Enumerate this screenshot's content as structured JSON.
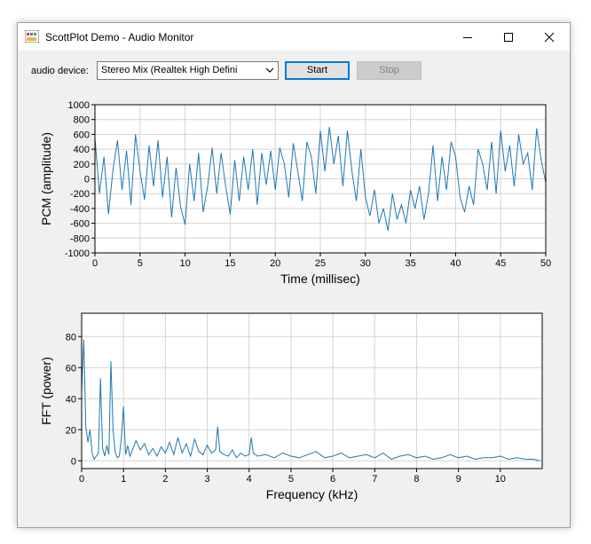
{
  "window": {
    "title": "ScottPlot Demo - Audio Monitor",
    "icons": {
      "app": "scottplot-app-icon",
      "minimize": "minimize-icon",
      "maximize": "maximize-icon",
      "close": "close-icon"
    }
  },
  "toolbar": {
    "device_label": "audio device:",
    "device_value": "Stereo Mix (Realtek High Defini",
    "start_label": "Start",
    "stop_label": "Stop"
  },
  "colors": {
    "series": "#1f77b4",
    "grid": "#d4d4d4",
    "start_border": "#0078d7"
  },
  "chart_data": [
    {
      "type": "line",
      "name": "pcm",
      "xlabel": "Time (millisec)",
      "ylabel": "PCM (amplitude)",
      "xlim": [
        0,
        50
      ],
      "ylim": [
        -1000,
        1000
      ],
      "x_ticks": [
        0,
        5,
        10,
        15,
        20,
        25,
        30,
        35,
        40,
        45,
        50
      ],
      "y_ticks": [
        -1000,
        -800,
        -600,
        -400,
        -200,
        0,
        200,
        400,
        600,
        800,
        1000
      ],
      "grid": true,
      "series": [
        {
          "x": [
            0,
            0.5,
            1,
            1.5,
            2,
            2.5,
            3,
            3.5,
            4,
            4.5,
            5,
            5.5,
            6,
            6.5,
            7,
            7.5,
            8,
            8.5,
            9,
            9.5,
            10,
            10.5,
            11,
            11.5,
            12,
            12.5,
            13,
            13.5,
            14,
            14.5,
            15,
            15.5,
            16,
            16.5,
            17,
            17.5,
            18,
            18.5,
            19,
            19.5,
            20,
            20.5,
            21,
            21.5,
            22,
            22.5,
            23,
            23.5,
            24,
            24.5,
            25,
            25.5,
            26,
            26.5,
            27,
            27.5,
            28,
            28.5,
            29,
            29.5,
            30,
            30.5,
            31,
            31.5,
            32,
            32.5,
            33,
            33.5,
            34,
            34.5,
            35,
            35.5,
            36,
            36.5,
            37,
            37.5,
            38,
            38.5,
            39,
            39.5,
            40,
            40.5,
            41,
            41.5,
            42,
            42.5,
            43,
            43.5,
            44,
            44.5,
            45,
            45.5,
            46,
            46.5,
            47,
            47.5,
            48,
            48.5,
            49,
            49.5,
            50
          ],
          "values": [
            550,
            -200,
            300,
            -480,
            120,
            520,
            -150,
            380,
            -350,
            600,
            100,
            -280,
            450,
            -100,
            520,
            -250,
            300,
            -520,
            150,
            -380,
            -620,
            200,
            -300,
            350,
            -450,
            -100,
            420,
            -200,
            350,
            -100,
            -480,
            250,
            -300,
            300,
            -150,
            400,
            -350,
            350,
            -80,
            380,
            -150,
            420,
            200,
            -250,
            480,
            100,
            -300,
            500,
            300,
            -200,
            650,
            100,
            700,
            200,
            580,
            -100,
            650,
            100,
            -300,
            400,
            -250,
            -500,
            -150,
            -600,
            -400,
            -700,
            -200,
            -550,
            -350,
            -600,
            -150,
            -400,
            -100,
            -550,
            -200,
            450,
            -300,
            300,
            -150,
            500,
            300,
            -250,
            -450,
            -100,
            -350,
            400,
            200,
            -150,
            500,
            -200,
            650,
            100,
            450,
            -100,
            600,
            200,
            350,
            -150,
            680,
            250,
            -50
          ]
        }
      ]
    },
    {
      "type": "line",
      "name": "fft",
      "xlabel": "Frequency (kHz)",
      "ylabel": "FFT (power)",
      "xlim": [
        0,
        11
      ],
      "ylim": [
        -5,
        95
      ],
      "x_ticks": [
        0,
        1,
        2,
        3,
        4,
        5,
        6,
        7,
        8,
        9,
        10
      ],
      "y_ticks": [
        0,
        20,
        40,
        60,
        80
      ],
      "grid": true,
      "series": [
        {
          "x": [
            0,
            0.05,
            0.1,
            0.15,
            0.2,
            0.25,
            0.3,
            0.35,
            0.4,
            0.45,
            0.5,
            0.55,
            0.6,
            0.65,
            0.7,
            0.75,
            0.8,
            0.85,
            0.9,
            0.95,
            1,
            1.05,
            1.1,
            1.15,
            1.2,
            1.3,
            1.4,
            1.5,
            1.6,
            1.7,
            1.8,
            1.9,
            2,
            2.1,
            2.2,
            2.3,
            2.4,
            2.5,
            2.6,
            2.7,
            2.8,
            2.9,
            3,
            3.1,
            3.2,
            3.25,
            3.3,
            3.4,
            3.5,
            3.6,
            3.7,
            3.8,
            3.9,
            4,
            4.05,
            4.1,
            4.2,
            4.4,
            4.6,
            4.8,
            5,
            5.2,
            5.4,
            5.6,
            5.8,
            6,
            6.2,
            6.4,
            6.6,
            6.8,
            7,
            7.2,
            7.4,
            7.6,
            7.8,
            8,
            8.2,
            8.4,
            8.6,
            8.8,
            9,
            9.2,
            9.4,
            9.6,
            9.8,
            10,
            10.2,
            10.4,
            10.6,
            10.8,
            10.95
          ],
          "values": [
            45,
            78,
            22,
            12,
            20,
            5,
            1,
            3,
            5,
            53,
            8,
            3,
            10,
            4,
            64,
            20,
            6,
            2,
            3,
            15,
            35,
            4,
            10,
            3,
            6,
            13,
            7,
            11,
            4,
            8,
            3,
            9,
            5,
            12,
            4,
            15,
            5,
            11,
            3,
            14,
            6,
            4,
            10,
            5,
            7,
            22,
            6,
            4,
            3,
            7,
            2,
            5,
            3,
            4,
            15,
            5,
            3,
            4,
            2,
            5,
            3,
            2,
            4,
            6,
            2,
            3,
            5,
            2,
            3,
            4,
            2,
            5,
            1,
            3,
            4,
            2,
            3,
            1,
            2,
            4,
            2,
            3,
            1,
            2,
            2,
            3,
            1,
            2,
            1,
            1,
            0
          ]
        }
      ]
    }
  ]
}
